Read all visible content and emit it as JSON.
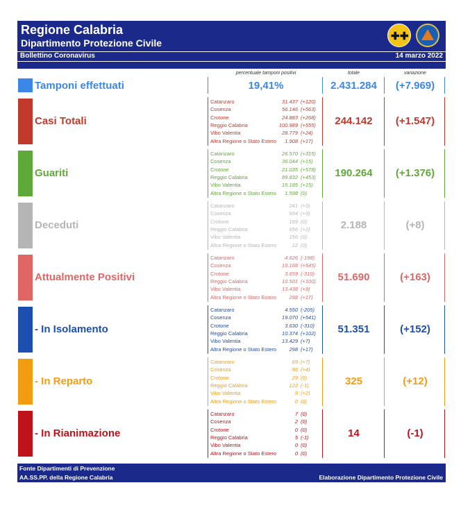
{
  "header": {
    "title": "Regione Calabria",
    "subtitle": "Dipartimento Protezione Civile",
    "bulletin": "Bollettino Coronavirus",
    "date": "14 marzo 2022"
  },
  "columns": {
    "pct": "percentuale tamponi positivi",
    "total": "totale",
    "change": "variazione"
  },
  "tamponi": {
    "label": "Tamponi effettuati",
    "pct": "19,41%",
    "total": "2.431.284",
    "change": "(+7.969)",
    "color": "#3b87e8"
  },
  "sections": [
    {
      "label": "Casi Totali",
      "color": "#c0392b",
      "total": "244.142",
      "change": "(+1.547)",
      "provinces": [
        {
          "name": "Catanzaro",
          "value": "31.437",
          "delta": "(+120)"
        },
        {
          "name": "Cosenza",
          "value": "56.146",
          "delta": "(+563)"
        },
        {
          "name": "Crotone",
          "value": "24.883",
          "delta": "(+268)"
        },
        {
          "name": "Reggio Calabria",
          "value": "100.989",
          "delta": "(+555)"
        },
        {
          "name": "Vibo Valentia",
          "value": "28.779",
          "delta": "(+24)"
        },
        {
          "name": "Altra Regione o Stato Estero",
          "value": "1.908",
          "delta": "(+17)"
        }
      ]
    },
    {
      "label": "Guariti",
      "color": "#5fa83a",
      "total": "190.264",
      "change": "(+1.376)",
      "provinces": [
        {
          "name": "Catanzaro",
          "value": "26.570",
          "delta": "(+315)"
        },
        {
          "name": "Cosenza",
          "value": "36.044",
          "delta": "(+15)"
        },
        {
          "name": "Crotone",
          "value": "21.035",
          "delta": "(+578)"
        },
        {
          "name": "Reggio Calabria",
          "value": "89.832",
          "delta": "(+453)"
        },
        {
          "name": "Vibo Valentia",
          "value": "15.185",
          "delta": "(+15)"
        },
        {
          "name": "Altra Regione o Stato Estero",
          "value": "1.598",
          "delta": "(0)"
        }
      ]
    },
    {
      "label": "Deceduti",
      "color": "#b5b5b5",
      "total": "2.188",
      "change": "(+8)",
      "provinces": [
        {
          "name": "Catanzaro",
          "value": "241",
          "delta": "(+3)"
        },
        {
          "name": "Cosenza",
          "value": "934",
          "delta": "(+3)"
        },
        {
          "name": "Crotone",
          "value": "189",
          "delta": "(0)"
        },
        {
          "name": "Reggio Calabria",
          "value": "656",
          "delta": "(+2)"
        },
        {
          "name": "Vibo Valentia",
          "value": "156",
          "delta": "(0)"
        },
        {
          "name": "Altra Regione o Stato Estero",
          "value": "12",
          "delta": "(0)"
        }
      ]
    },
    {
      "label": "Attualmente Positivi",
      "color": "#e06666",
      "total": "51.690",
      "change": "(+163)",
      "provinces": [
        {
          "name": "Catanzaro",
          "value": "4.626",
          "delta": "(-198)"
        },
        {
          "name": "Cosenza",
          "value": "19.168",
          "delta": "(+545)"
        },
        {
          "name": "Crotone",
          "value": "3.659",
          "delta": "(-310)"
        },
        {
          "name": "Reggio Calabria",
          "value": "10.501",
          "delta": "(+100)"
        },
        {
          "name": "Vibo Valentia",
          "value": "13.438",
          "delta": "(+9)"
        },
        {
          "name": "Altra Regione o Stato Estero",
          "value": "298",
          "delta": "(+17)"
        }
      ]
    },
    {
      "label": " - In Isolamento",
      "color": "#1c4fb0",
      "total": "51.351",
      "change": "(+152)",
      "provinces": [
        {
          "name": "Catanzaro",
          "value": "4.550",
          "delta": "(-205)"
        },
        {
          "name": "Cosenza",
          "value": "19.070",
          "delta": "(+541)"
        },
        {
          "name": "Crotone",
          "value": "3.630",
          "delta": "(-310)"
        },
        {
          "name": "Reggio Calabria",
          "value": "10.374",
          "delta": "(+102)"
        },
        {
          "name": "Vibo Valentia",
          "value": "13.429",
          "delta": "(+7)"
        },
        {
          "name": "Altra Regione o Stato Estero",
          "value": "298",
          "delta": "(+17)"
        }
      ]
    },
    {
      "label": " - In Reparto",
      "color": "#f39c12",
      "total": "325",
      "change": "(+12)",
      "provinces": [
        {
          "name": "Catanzaro",
          "value": "69",
          "delta": "(+7)"
        },
        {
          "name": "Cosenza",
          "value": "96",
          "delta": "(+4)"
        },
        {
          "name": "Crotone",
          "value": "29",
          "delta": "(0)"
        },
        {
          "name": "Reggio Calabria",
          "value": "122",
          "delta": "(-1)"
        },
        {
          "name": "Vibo Valentia",
          "value": "9",
          "delta": "(+2)"
        },
        {
          "name": "Altra Regione o Stato Estero",
          "value": "0",
          "delta": "(0)"
        }
      ]
    },
    {
      "label": " - In Rianimazione",
      "color": "#c0121a",
      "total": "14",
      "change": "(-1)",
      "provinces": [
        {
          "name": "Catanzaro",
          "value": "7",
          "delta": "(0)"
        },
        {
          "name": "Cosenza",
          "value": "2",
          "delta": "(0)"
        },
        {
          "name": "Crotone",
          "value": "0",
          "delta": "(0)"
        },
        {
          "name": "Reggio Calabria",
          "value": "5",
          "delta": "(-1)"
        },
        {
          "name": "Vibo Valentia",
          "value": "0",
          "delta": "(0)"
        },
        {
          "name": "Altra Regione o Stato Estero",
          "value": "0",
          "delta": "(0)"
        }
      ]
    }
  ],
  "footer": {
    "line1": "Fonte Dipartimenti di Prevenzione",
    "line2": "AA.SS.PP.  della Regione Calabria",
    "right": "Elaborazione Dipartimento Protezione Civile"
  }
}
